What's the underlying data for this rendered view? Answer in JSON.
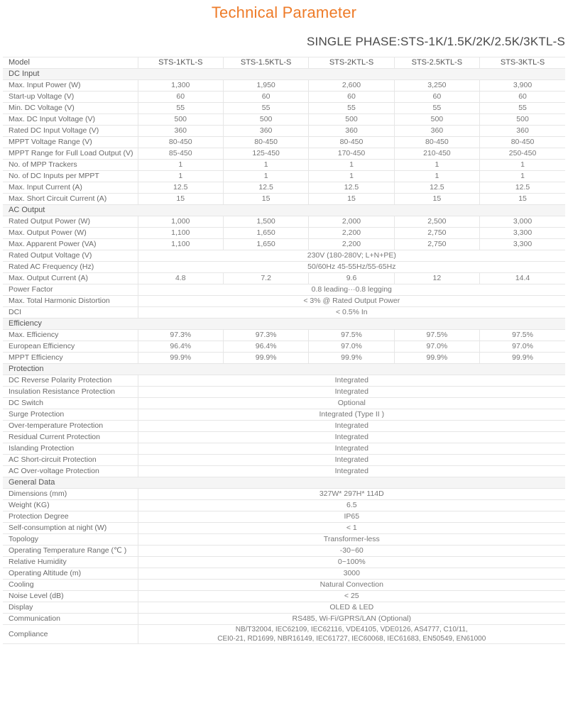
{
  "page": {
    "title": "Technical Parameter",
    "subtitle": "SINGLE PHASE:STS-1K/1.5K/2K/2.5K/3KTL-S"
  },
  "colors": {
    "accent_orange": "#ee7b28",
    "subtitle_text": "#4a4a4a",
    "section_bg": "#f5f5f5",
    "table_border": "#e6e6e6",
    "cell_text": "#777777"
  },
  "table": {
    "header": [
      "Model",
      "STS-1KTL-S",
      "STS-1.5KTL-S",
      "STS-2KTL-S",
      "STS-2.5KTL-S",
      "STS-3KTL-S"
    ],
    "sections": [
      {
        "title": "DC Input",
        "rows": [
          {
            "label": "Max. Input Power (W)",
            "values": [
              "1,300",
              "1,950",
              "2,600",
              "3,250",
              "3,900"
            ]
          },
          {
            "label": "Start-up Voltage (V)",
            "values": [
              "60",
              "60",
              "60",
              "60",
              "60"
            ]
          },
          {
            "label": "Min. DC Voltage (V)",
            "values": [
              "55",
              "55",
              "55",
              "55",
              "55"
            ]
          },
          {
            "label": "Max. DC Input Voltage (V)",
            "values": [
              "500",
              "500",
              "500",
              "500",
              "500"
            ]
          },
          {
            "label": "Rated DC Input Voltage (V)",
            "values": [
              "360",
              "360",
              "360",
              "360",
              "360"
            ]
          },
          {
            "label": "MPPT Voltage Range (V)",
            "values": [
              "80-450",
              "80-450",
              "80-450",
              "80-450",
              "80-450"
            ]
          },
          {
            "label": "MPPT Range for Full Load Output (V)",
            "values": [
              "85-450",
              "125-450",
              "170-450",
              "210-450",
              "250-450"
            ]
          },
          {
            "label": "No. of MPP Trackers",
            "values": [
              "1",
              "1",
              "1",
              "1",
              "1"
            ]
          },
          {
            "label": "No. of DC Inputs per MPPT",
            "values": [
              "1",
              "1",
              "1",
              "1",
              "1"
            ]
          },
          {
            "label": "Max. Input Current (A)",
            "values": [
              "12.5",
              "12.5",
              "12.5",
              "12.5",
              "12.5"
            ]
          },
          {
            "label": "Max. Short Circuit Current (A)",
            "values": [
              "15",
              "15",
              "15",
              "15",
              "15"
            ]
          }
        ]
      },
      {
        "title": "AC Output",
        "rows": [
          {
            "label": "Rated Output Power (W)",
            "values": [
              "1,000",
              "1,500",
              "2,000",
              "2,500",
              "3,000"
            ]
          },
          {
            "label": "Max. Output Power (W)",
            "values": [
              "1,100",
              "1,650",
              "2,200",
              "2,750",
              "3,300"
            ]
          },
          {
            "label": "Max. Apparent Power (VA)",
            "values": [
              "1,100",
              "1,650",
              "2,200",
              "2,750",
              "3,300"
            ]
          },
          {
            "label": "Rated Output Voltage (V)",
            "span": "230V (180-280V; L+N+PE)"
          },
          {
            "label": "Rated AC Frequency (Hz)",
            "span": "50/60Hz 45-55Hz/55-65Hz"
          },
          {
            "label": "Max. Output Current (A)",
            "values": [
              "4.8",
              "7.2",
              "9.6",
              "12",
              "14.4"
            ]
          },
          {
            "label": "Power Factor",
            "span": "0.8 leading···0.8 legging"
          },
          {
            "label": "Max. Total Harmonic Distortion",
            "span": "< 3% @ Rated Output Power"
          },
          {
            "label": "DCI",
            "span": "< 0.5% In"
          }
        ]
      },
      {
        "title": "Efficiency",
        "rows": [
          {
            "label": "Max. Efficiency",
            "values": [
              "97.3%",
              "97.3%",
              "97.5%",
              "97.5%",
              "97.5%"
            ]
          },
          {
            "label": "European Efficiency",
            "values": [
              "96.4%",
              "96.4%",
              "97.0%",
              "97.0%",
              "97.0%"
            ]
          },
          {
            "label": "MPPT Efficiency",
            "values": [
              "99.9%",
              "99.9%",
              "99.9%",
              "99.9%",
              "99.9%"
            ]
          }
        ]
      },
      {
        "title": "Protection",
        "rows": [
          {
            "label": "DC Reverse Polarity Protection",
            "span": "Integrated"
          },
          {
            "label": "Insulation Resistance Protection",
            "span": "Integrated"
          },
          {
            "label": "DC Switch",
            "span": "Optional"
          },
          {
            "label": "Surge Protection",
            "span": "Integrated (Type II )"
          },
          {
            "label": "Over-temperature Protection",
            "span": "Integrated"
          },
          {
            "label": "Residual Current Protection",
            "span": "Integrated"
          },
          {
            "label": "Islanding Protection",
            "span": "Integrated"
          },
          {
            "label": "AC Short-circuit Protection",
            "span": "Integrated"
          },
          {
            "label": "AC Over-voltage Protection",
            "span": "Integrated"
          }
        ]
      },
      {
        "title": "General Data",
        "rows": [
          {
            "label": "Dimensions (mm)",
            "span": "327W* 297H* 114D"
          },
          {
            "label": "Weight (KG)",
            "span": "6.5"
          },
          {
            "label": "Protection Degree",
            "span": "IP65"
          },
          {
            "label": "Self-consumption at night (W)",
            "span": "< 1"
          },
          {
            "label": "Topology",
            "span": "Transformer-less"
          },
          {
            "label": "Operating Temperature Range (℃ )",
            "span": "-30~60"
          },
          {
            "label": "Relative Humidity",
            "span": "0~100%"
          },
          {
            "label": "Operating Altitude (m)",
            "span": "3000"
          },
          {
            "label": "Cooling",
            "span": "Natural Convection"
          },
          {
            "label": "Noise Level (dB)",
            "span": "< 25"
          },
          {
            "label": "Display",
            "span": "OLED & LED"
          },
          {
            "label": "Communication",
            "span": "RS485, Wi-Fi/GPRS/LAN (Optional)"
          },
          {
            "label": "Compliance",
            "span": "NB/T32004, IEC62109, IEC62116, VDE4105, VDE0126, AS4777, C10/11,\nCEI0-21, RD1699, NBR16149, IEC61727, IEC60068, IEC61683, EN50549, EN61000",
            "multiline": true
          }
        ]
      }
    ]
  }
}
